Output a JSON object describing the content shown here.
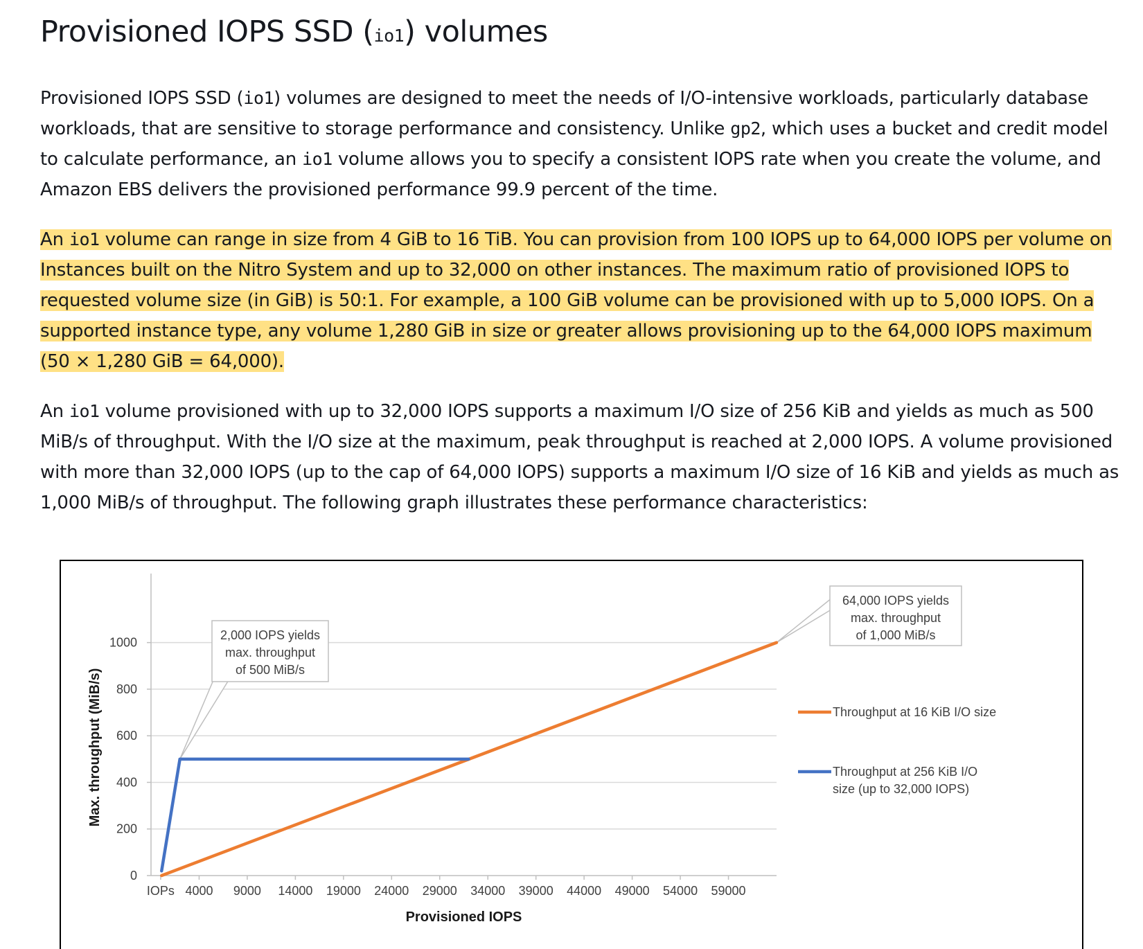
{
  "page": {
    "title_pre": "Provisioned IOPS SSD (",
    "title_code": "io1",
    "title_post": ") volumes",
    "p1": {
      "a": "Provisioned IOPS SSD (",
      "code1": "io1",
      "b": ") volumes are designed to meet the needs of I/O-intensive workloads, particularly database workloads, that are sensitive to storage performance and consistency. Unlike ",
      "code2": "gp2",
      "c": ", which uses a bucket and credit model to calculate performance, an ",
      "code3": "io1",
      "d": " volume allows you to specify a consistent IOPS rate when you create the volume, and Amazon EBS delivers the provisioned performance 99.9 percent of the time."
    },
    "p2": {
      "a": "An ",
      "code1": "io1",
      "b": " volume can range in size from 4 GiB to 16 TiB. You can provision from 100 IOPS up to 64,000 IOPS per volume on Instances built on the Nitro System and up to 32,000 on other instances. The maximum ratio of provisioned IOPS to requested volume size (in GiB) is 50:1. For example, a 100 GiB volume can be provisioned with up to 5,000 IOPS. On a supported instance type, any volume 1,280 GiB in size or greater allows provisioning up to the 64,000 IOPS maximum (50 × 1,280 GiB = 64,000)."
    },
    "p3": {
      "a": "An ",
      "code1": "io1",
      "b": " volume provisioned with up to 32,000 IOPS supports a maximum I/O size of 256 KiB and yields as much as 500 MiB/s of throughput. With the I/O size at the maximum, peak throughput is reached at 2,000 IOPS. A volume provisioned with more than 32,000 IOPS (up to the cap of 64,000 IOPS) supports a maximum I/O size of 16 KiB and yields as much as 1,000 MiB/s of throughput. The following graph illustrates these performance characteristics:"
    }
  },
  "chart_data": {
    "type": "line",
    "xlabel": "Provisioned IOPS",
    "ylabel": "Max. throughput (MiB/s)",
    "x_tick_labels": [
      "IOPs",
      "4000",
      "9000",
      "14000",
      "19000",
      "24000",
      "29000",
      "34000",
      "39000",
      "44000",
      "49000",
      "54000",
      "59000"
    ],
    "x_tick_values": [
      0,
      4000,
      9000,
      14000,
      19000,
      24000,
      29000,
      34000,
      39000,
      44000,
      49000,
      54000,
      59000
    ],
    "xlim": [
      -1000,
      64000
    ],
    "y_ticks": [
      0,
      200,
      400,
      600,
      800,
      1000
    ],
    "ylim": [
      0,
      1100
    ],
    "grid": "horizontal",
    "legend_position": "right",
    "series": [
      {
        "name": "Throughput at 16 KiB I/O size",
        "color": "#ed7d31",
        "points": [
          [
            100,
            0
          ],
          [
            64000,
            1000
          ]
        ]
      },
      {
        "name": "Throughput at 256 KiB I/O size (up to 32,000 IOPS)",
        "legend_lines": [
          "Throughput at 256 KiB I/O",
          "size (up to 32,000 IOPS)"
        ],
        "color": "#4472c4",
        "points": [
          [
            100,
            20
          ],
          [
            2000,
            500
          ],
          [
            32000,
            500
          ]
        ]
      }
    ],
    "annotations": [
      {
        "lines": [
          "2,000 IOPS yields",
          "max. throughput",
          "of 500 MiB/s"
        ],
        "x": 2000,
        "y": 500
      },
      {
        "lines": [
          "64,000 IOPS yields",
          "max. throughput",
          "of 1,000 MiB/s"
        ],
        "x": 64000,
        "y": 1000
      }
    ]
  }
}
